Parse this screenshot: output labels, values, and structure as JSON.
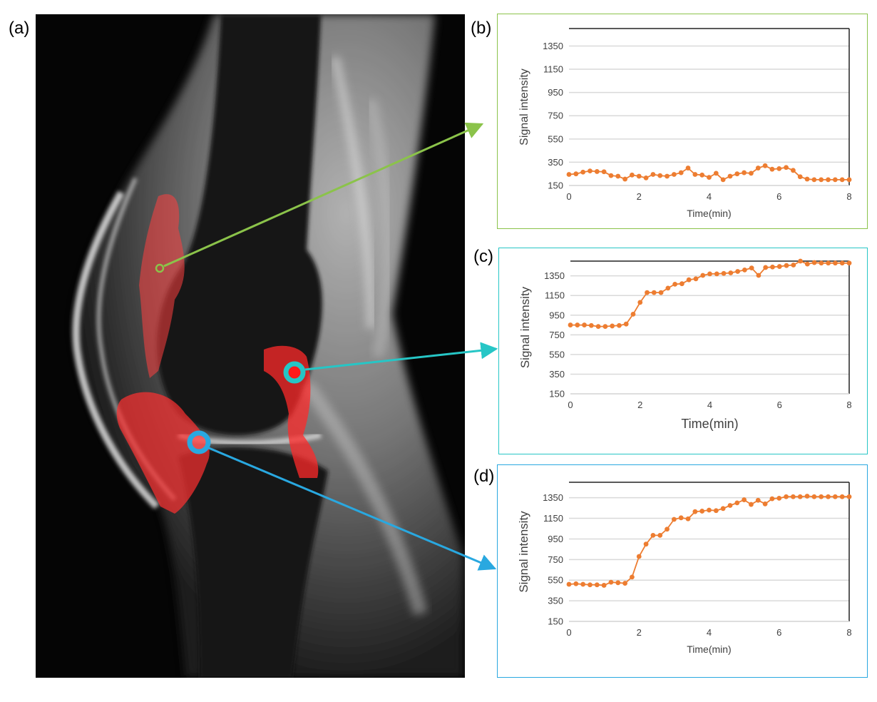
{
  "panel_labels": {
    "a": "(a)",
    "b": "(b)",
    "c": "(c)",
    "d": "(d)"
  },
  "colors": {
    "series": "#ed7d31",
    "box_b": "#8bc34a",
    "box_c": "#26c6c6",
    "box_d": "#29a8e0",
    "arrow_b": "#8bc34a",
    "arrow_c": "#26c6c6",
    "arrow_d": "#29a8e0",
    "roi_overlay": "#ff3030"
  },
  "chart_data": [
    {
      "id": "b",
      "type": "line",
      "xlabel": "Time(min)",
      "ylabel": "Signal intensity",
      "xlim": [
        0,
        8
      ],
      "ylim": [
        150,
        1500
      ],
      "xticks": [
        "0",
        "2",
        "4",
        "6",
        "8"
      ],
      "yticks": [
        "150",
        "350",
        "550",
        "750",
        "950",
        "1150",
        "1350"
      ],
      "x": [
        0,
        0.2,
        0.4,
        0.6,
        0.8,
        1.0,
        1.2,
        1.4,
        1.6,
        1.8,
        2.0,
        2.2,
        2.4,
        2.6,
        2.8,
        3.0,
        3.2,
        3.4,
        3.6,
        3.8,
        4.0,
        4.2,
        4.4,
        4.6,
        4.8,
        5.0,
        5.2,
        5.4,
        5.6,
        5.8,
        6.0,
        6.2,
        6.4,
        6.6,
        6.8,
        7.0,
        7.2,
        7.4,
        7.6,
        7.8,
        8.0
      ],
      "values": [
        245,
        250,
        265,
        275,
        270,
        268,
        235,
        230,
        205,
        240,
        230,
        215,
        245,
        235,
        230,
        245,
        260,
        300,
        245,
        240,
        220,
        255,
        200,
        230,
        250,
        260,
        255,
        300,
        320,
        290,
        295,
        305,
        280,
        225,
        205,
        200,
        200,
        200,
        200,
        200,
        200
      ]
    },
    {
      "id": "c",
      "type": "line",
      "xlabel": "Time(min)",
      "ylabel": "Signal intensity",
      "xlim": [
        0,
        8
      ],
      "ylim": [
        150,
        1500
      ],
      "xticks": [
        "0",
        "2",
        "4",
        "6",
        "8"
      ],
      "yticks": [
        "150",
        "350",
        "550",
        "750",
        "950",
        "1150",
        "1350"
      ],
      "x": [
        0,
        0.2,
        0.4,
        0.6,
        0.8,
        1.0,
        1.2,
        1.4,
        1.6,
        1.8,
        2.0,
        2.2,
        2.4,
        2.6,
        2.8,
        3.0,
        3.2,
        3.4,
        3.6,
        3.8,
        4.0,
        4.2,
        4.4,
        4.6,
        4.8,
        5.0,
        5.2,
        5.4,
        5.6,
        5.8,
        6.0,
        6.2,
        6.4,
        6.6,
        6.8,
        7.0,
        7.2,
        7.4,
        7.6,
        7.8,
        8.0
      ],
      "values": [
        850,
        850,
        850,
        845,
        835,
        835,
        840,
        845,
        860,
        960,
        1080,
        1180,
        1180,
        1180,
        1225,
        1265,
        1270,
        1310,
        1320,
        1355,
        1370,
        1370,
        1375,
        1380,
        1395,
        1410,
        1430,
        1355,
        1435,
        1440,
        1445,
        1455,
        1460,
        1500,
        1470,
        1485,
        1480,
        1480,
        1480,
        1480,
        1480
      ]
    },
    {
      "id": "d",
      "type": "line",
      "xlabel": "Time(min)",
      "ylabel": "Signal intensity",
      "xlim": [
        0,
        8
      ],
      "ylim": [
        150,
        1500
      ],
      "xticks": [
        "0",
        "2",
        "4",
        "6",
        "8"
      ],
      "yticks": [
        "150",
        "350",
        "550",
        "750",
        "950",
        "1150",
        "1350"
      ],
      "x": [
        0,
        0.2,
        0.4,
        0.6,
        0.8,
        1.0,
        1.2,
        1.4,
        1.6,
        1.8,
        2.0,
        2.2,
        2.4,
        2.6,
        2.8,
        3.0,
        3.2,
        3.4,
        3.6,
        3.8,
        4.0,
        4.2,
        4.4,
        4.6,
        4.8,
        5.0,
        5.2,
        5.4,
        5.6,
        5.8,
        6.0,
        6.2,
        6.4,
        6.6,
        6.8,
        7.0,
        7.2,
        7.4,
        7.6,
        7.8,
        8.0
      ],
      "values": [
        510,
        515,
        510,
        505,
        505,
        500,
        530,
        525,
        520,
        580,
        780,
        900,
        985,
        985,
        1045,
        1140,
        1155,
        1145,
        1215,
        1220,
        1230,
        1225,
        1245,
        1275,
        1300,
        1330,
        1285,
        1325,
        1290,
        1340,
        1345,
        1360,
        1360,
        1360,
        1365,
        1360,
        1360,
        1360,
        1360,
        1360,
        1360
      ]
    }
  ]
}
